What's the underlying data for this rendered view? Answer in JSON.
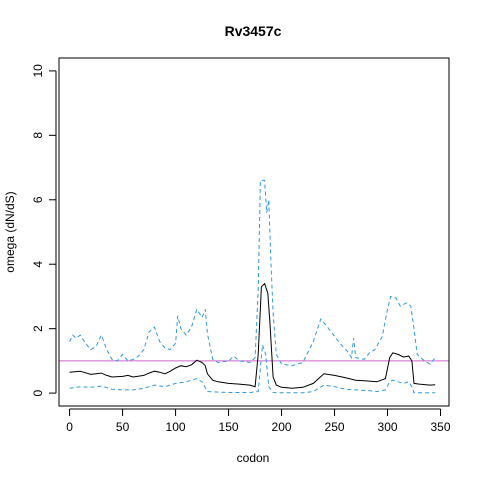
{
  "chart_data": {
    "type": "line",
    "title": "Rv3457c",
    "xlabel": "codon",
    "ylabel": "omega (dN/dS)",
    "xlim": [
      -10,
      358
    ],
    "ylim": [
      -0.4,
      10.4
    ],
    "x_ticks": [
      0,
      50,
      100,
      150,
      200,
      250,
      300,
      350
    ],
    "y_ticks": [
      0,
      2,
      4,
      6,
      8,
      10
    ],
    "grid": false,
    "legend": "none",
    "reference_line": {
      "y": 1,
      "color": "#cc66cc"
    },
    "series": [
      {
        "color": "#000000",
        "style": "solid",
        "points": [
          [
            0,
            0.65
          ],
          [
            10,
            0.68
          ],
          [
            20,
            0.58
          ],
          [
            30,
            0.62
          ],
          [
            35,
            0.55
          ],
          [
            40,
            0.5
          ],
          [
            50,
            0.52
          ],
          [
            55,
            0.55
          ],
          [
            60,
            0.5
          ],
          [
            70,
            0.55
          ],
          [
            75,
            0.62
          ],
          [
            80,
            0.68
          ],
          [
            85,
            0.65
          ],
          [
            90,
            0.6
          ],
          [
            95,
            0.68
          ],
          [
            100,
            0.78
          ],
          [
            105,
            0.85
          ],
          [
            110,
            0.82
          ],
          [
            115,
            0.88
          ],
          [
            120,
            1.02
          ],
          [
            125,
            0.95
          ],
          [
            128,
            0.85
          ],
          [
            130,
            0.6
          ],
          [
            135,
            0.4
          ],
          [
            140,
            0.35
          ],
          [
            150,
            0.3
          ],
          [
            160,
            0.28
          ],
          [
            170,
            0.25
          ],
          [
            175,
            0.2
          ],
          [
            178,
            1.2
          ],
          [
            181,
            3.3
          ],
          [
            184,
            3.4
          ],
          [
            187,
            3.1
          ],
          [
            189,
            2.2
          ],
          [
            192,
            0.5
          ],
          [
            195,
            0.25
          ],
          [
            200,
            0.18
          ],
          [
            210,
            0.15
          ],
          [
            220,
            0.18
          ],
          [
            230,
            0.3
          ],
          [
            240,
            0.6
          ],
          [
            250,
            0.55
          ],
          [
            260,
            0.48
          ],
          [
            270,
            0.4
          ],
          [
            280,
            0.38
          ],
          [
            290,
            0.35
          ],
          [
            298,
            0.45
          ],
          [
            302,
            1.1
          ],
          [
            305,
            1.25
          ],
          [
            310,
            1.2
          ],
          [
            315,
            1.12
          ],
          [
            320,
            1.15
          ],
          [
            323,
            1.0
          ],
          [
            325,
            0.3
          ],
          [
            330,
            0.28
          ],
          [
            340,
            0.25
          ],
          [
            345,
            0.26
          ]
        ]
      },
      {
        "color": "#3399dd",
        "style": "dashed",
        "points": [
          [
            0,
            1.6
          ],
          [
            3,
            1.8
          ],
          [
            6,
            1.7
          ],
          [
            10,
            1.8
          ],
          [
            15,
            1.55
          ],
          [
            20,
            1.35
          ],
          [
            25,
            1.45
          ],
          [
            30,
            1.8
          ],
          [
            35,
            1.35
          ],
          [
            40,
            1.05
          ],
          [
            45,
            1.0
          ],
          [
            50,
            1.2
          ],
          [
            55,
            1.0
          ],
          [
            60,
            1.05
          ],
          [
            65,
            1.15
          ],
          [
            70,
            1.35
          ],
          [
            75,
            1.9
          ],
          [
            80,
            2.05
          ],
          [
            85,
            1.6
          ],
          [
            90,
            1.4
          ],
          [
            95,
            1.35
          ],
          [
            100,
            1.55
          ],
          [
            102,
            2.4
          ],
          [
            105,
            2.0
          ],
          [
            110,
            1.8
          ],
          [
            115,
            2.05
          ],
          [
            120,
            2.6
          ],
          [
            125,
            2.35
          ],
          [
            128,
            2.6
          ],
          [
            130,
            1.85
          ],
          [
            135,
            1.05
          ],
          [
            140,
            0.95
          ],
          [
            150,
            1.0
          ],
          [
            155,
            1.15
          ],
          [
            160,
            1.0
          ],
          [
            170,
            0.95
          ],
          [
            175,
            1.1
          ],
          [
            178,
            3.2
          ],
          [
            180,
            6.6
          ],
          [
            184,
            6.6
          ],
          [
            186,
            5.6
          ],
          [
            188,
            6.0
          ],
          [
            190,
            4.0
          ],
          [
            192,
            2.5
          ],
          [
            195,
            1.2
          ],
          [
            200,
            0.9
          ],
          [
            210,
            0.85
          ],
          [
            220,
            0.95
          ],
          [
            230,
            1.6
          ],
          [
            237,
            2.3
          ],
          [
            242,
            2.1
          ],
          [
            248,
            1.85
          ],
          [
            255,
            1.55
          ],
          [
            262,
            1.3
          ],
          [
            266,
            1.1
          ],
          [
            268,
            1.7
          ],
          [
            270,
            1.1
          ],
          [
            278,
            1.05
          ],
          [
            283,
            1.25
          ],
          [
            288,
            1.35
          ],
          [
            295,
            1.75
          ],
          [
            300,
            2.6
          ],
          [
            303,
            3.0
          ],
          [
            308,
            2.95
          ],
          [
            312,
            2.7
          ],
          [
            318,
            2.8
          ],
          [
            322,
            2.7
          ],
          [
            325,
            2.0
          ],
          [
            328,
            1.2
          ],
          [
            335,
            1.0
          ],
          [
            340,
            0.9
          ],
          [
            345,
            1.1
          ]
        ]
      },
      {
        "color": "#3399dd",
        "style": "dashed",
        "points": [
          [
            0,
            0.15
          ],
          [
            10,
            0.2
          ],
          [
            20,
            0.18
          ],
          [
            30,
            0.22
          ],
          [
            40,
            0.12
          ],
          [
            50,
            0.1
          ],
          [
            60,
            0.1
          ],
          [
            70,
            0.15
          ],
          [
            80,
            0.25
          ],
          [
            90,
            0.2
          ],
          [
            100,
            0.3
          ],
          [
            110,
            0.35
          ],
          [
            120,
            0.45
          ],
          [
            125,
            0.35
          ],
          [
            130,
            0.05
          ],
          [
            140,
            0.03
          ],
          [
            150,
            0.02
          ],
          [
            160,
            0.02
          ],
          [
            170,
            0.02
          ],
          [
            178,
            0.05
          ],
          [
            182,
            1.5
          ],
          [
            185,
            1.2
          ],
          [
            188,
            0.2
          ],
          [
            192,
            0.02
          ],
          [
            200,
            0.01
          ],
          [
            210,
            0.01
          ],
          [
            220,
            0.01
          ],
          [
            230,
            0.05
          ],
          [
            240,
            0.25
          ],
          [
            250,
            0.2
          ],
          [
            260,
            0.12
          ],
          [
            270,
            0.1
          ],
          [
            280,
            0.08
          ],
          [
            290,
            0.05
          ],
          [
            298,
            0.1
          ],
          [
            302,
            0.35
          ],
          [
            305,
            0.4
          ],
          [
            310,
            0.35
          ],
          [
            315,
            0.3
          ],
          [
            320,
            0.35
          ],
          [
            323,
            0.2
          ],
          [
            325,
            0.01
          ],
          [
            335,
            0.01
          ],
          [
            345,
            0.01
          ]
        ]
      }
    ]
  }
}
